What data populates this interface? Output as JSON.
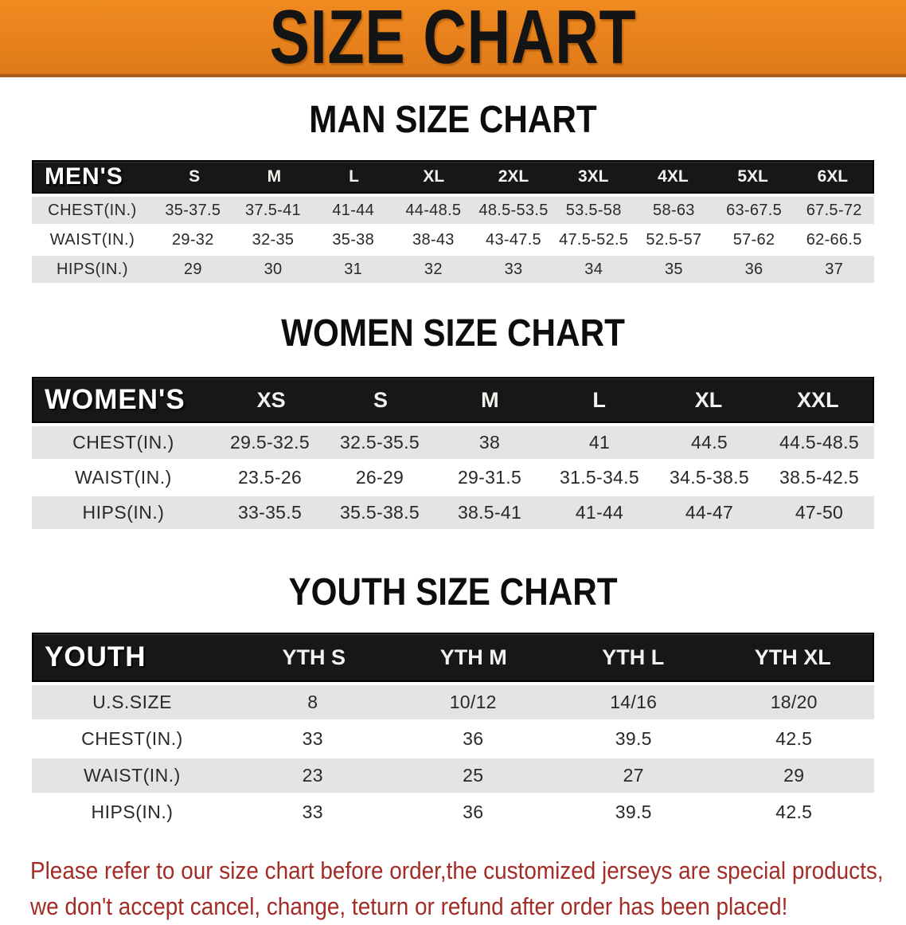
{
  "banner": {
    "title": "SIZE CHART",
    "bg_color": "#e8811c"
  },
  "sections": [
    {
      "id": "men",
      "heading": "MAN SIZE CHART",
      "table": {
        "header_label": "MEN'S",
        "columns": [
          "S",
          "M",
          "L",
          "XL",
          "2XL",
          "3XL",
          "4XL",
          "5XL",
          "6XL"
        ],
        "rows": [
          {
            "label": "CHEST(IN.)",
            "values": [
              "35-37.5",
              "37.5-41",
              "41-44",
              "44-48.5",
              "48.5-53.5",
              "53.5-58",
              "58-63",
              "63-67.5",
              "67.5-72"
            ]
          },
          {
            "label": "WAIST(IN.)",
            "values": [
              "29-32",
              "32-35",
              "35-38",
              "38-43",
              "43-47.5",
              "47.5-52.5",
              "52.5-57",
              "57-62",
              "62-66.5"
            ]
          },
          {
            "label": "HIPS(IN.)",
            "values": [
              "29",
              "30",
              "31",
              "32",
              "33",
              "34",
              "35",
              "36",
              "37"
            ]
          }
        ]
      }
    },
    {
      "id": "women",
      "heading": "WOMEN SIZE CHART",
      "table": {
        "header_label": "WOMEN'S",
        "columns": [
          "XS",
          "S",
          "M",
          "L",
          "XL",
          "XXL"
        ],
        "rows": [
          {
            "label": "CHEST(IN.)",
            "values": [
              "29.5-32.5",
              "32.5-35.5",
              "38",
              "41",
              "44.5",
              "44.5-48.5"
            ]
          },
          {
            "label": "WAIST(IN.)",
            "values": [
              "23.5-26",
              "26-29",
              "29-31.5",
              "31.5-34.5",
              "34.5-38.5",
              "38.5-42.5"
            ]
          },
          {
            "label": "HIPS(IN.)",
            "values": [
              "33-35.5",
              "35.5-38.5",
              "38.5-41",
              "41-44",
              "44-47",
              "47-50"
            ]
          }
        ]
      }
    },
    {
      "id": "youth",
      "heading": "YOUTH SIZE CHART",
      "table": {
        "header_label": "YOUTH",
        "columns": [
          "YTH S",
          "YTH M",
          "YTH L",
          "YTH XL"
        ],
        "rows": [
          {
            "label": "U.S.SIZE",
            "values": [
              "8",
              "10/12",
              "14/16",
              "18/20"
            ]
          },
          {
            "label": "CHEST(IN.)",
            "values": [
              "33",
              "36",
              "39.5",
              "42.5"
            ]
          },
          {
            "label": "WAIST(IN.)",
            "values": [
              "23",
              "25",
              "27",
              "29"
            ]
          },
          {
            "label": "HIPS(IN.)",
            "values": [
              "33",
              "36",
              "39.5",
              "42.5"
            ]
          }
        ]
      }
    }
  ],
  "disclaimer": {
    "line1": "Please refer to our size chart before order,the customized jerseys are special products,",
    "line2": "we don't accept cancel, change, teturn or refund after order has been placed!",
    "color": "#a32c26"
  }
}
